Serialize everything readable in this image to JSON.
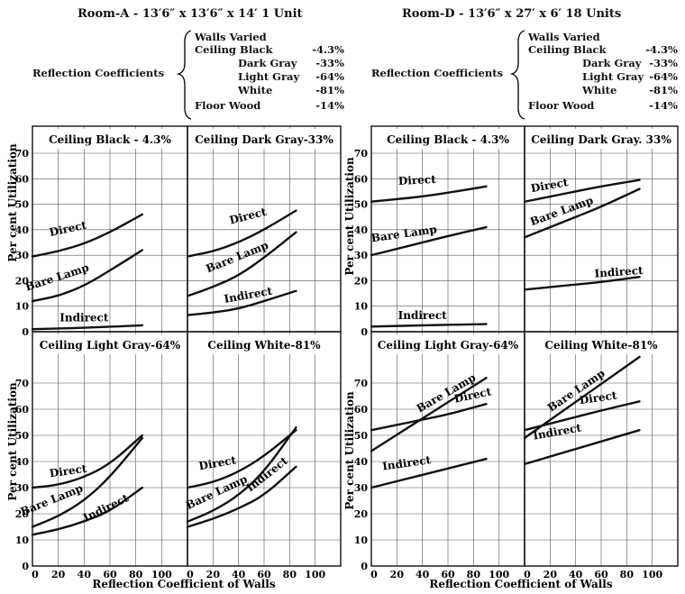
{
  "rooms": [
    {
      "title": "Room-A - 13′6″ x 13′6″ x 14′  1 Unit",
      "reflection_label": "Reflection Coefficients",
      "walls_line": "Walls Varied",
      "coefficients": [
        {
          "label": "Ceiling Black",
          "value": "-4.3%"
        },
        {
          "label": "Dark Gray",
          "value": "-33%"
        },
        {
          "label": "Light Gray",
          "value": "-64%"
        },
        {
          "label": "White",
          "value": "-81%"
        },
        {
          "label": "Floor Wood",
          "value": "-14%"
        }
      ],
      "ylabel": "Per cent Utilization",
      "xlabel": "Reflection Coefficient of Walls"
    },
    {
      "title": "Room-D - 13′6″ x 27′ x 6′  18 Units",
      "reflection_label": "Reflection Coefficients",
      "walls_line": "Walls Varied",
      "coefficients": [
        {
          "label": "Ceiling Black",
          "value": "-4.3%"
        },
        {
          "label": "Dark Gray",
          "value": "-33%"
        },
        {
          "label": "Light Gray",
          "value": "-64%"
        },
        {
          "label": "White",
          "value": "-81%"
        },
        {
          "label": "Floor Wood",
          "value": "-14%"
        }
      ],
      "ylabel": "Per cent Utilization",
      "xlabel": "Reflection Coefficient of Walls"
    }
  ],
  "chart_data": [
    {
      "type": "line",
      "room": "Room-A",
      "title": "Ceiling Black - 4.3%",
      "xlim": [
        0,
        120
      ],
      "ylim": [
        0,
        70
      ],
      "grid": true,
      "xticks": [
        0,
        20,
        40,
        60,
        80,
        100
      ],
      "yticks": [
        0,
        10,
        20,
        30,
        40,
        50,
        60,
        70
      ],
      "series": [
        {
          "name": "Direct",
          "x": [
            0,
            20,
            40,
            60,
            85
          ],
          "y": [
            29.5,
            31.5,
            34.5,
            39,
            46
          ]
        },
        {
          "name": "Bare Lamp",
          "x": [
            0,
            20,
            40,
            60,
            85
          ],
          "y": [
            12,
            14,
            18,
            24,
            32
          ]
        },
        {
          "name": "Indirect",
          "x": [
            0,
            40,
            85
          ],
          "y": [
            1,
            1.5,
            2.5
          ]
        }
      ]
    },
    {
      "type": "line",
      "room": "Room-A",
      "title": "Ceiling Dark Gray-33%",
      "xlim": [
        0,
        120
      ],
      "ylim": [
        0,
        70
      ],
      "grid": true,
      "xticks": [
        0,
        20,
        40,
        60,
        80,
        100
      ],
      "yticks": [
        0,
        10,
        20,
        30,
        40,
        50,
        60,
        70
      ],
      "series": [
        {
          "name": "Direct",
          "x": [
            0,
            20,
            40,
            60,
            85
          ],
          "y": [
            29.5,
            31.5,
            35,
            40,
            47.5
          ]
        },
        {
          "name": "Bare Lamp",
          "x": [
            0,
            20,
            40,
            60,
            85
          ],
          "y": [
            14,
            17.5,
            22,
            29,
            39
          ]
        },
        {
          "name": "Indirect",
          "x": [
            0,
            20,
            40,
            60,
            85
          ],
          "y": [
            6.5,
            7.5,
            9,
            12,
            16
          ]
        }
      ]
    },
    {
      "type": "line",
      "room": "Room-A",
      "title": "Ceiling Light Gray-64%",
      "xlim": [
        0,
        120
      ],
      "ylim": [
        0,
        80
      ],
      "grid": true,
      "xticks": [
        0,
        20,
        40,
        60,
        80,
        100
      ],
      "yticks": [
        0,
        10,
        20,
        30,
        40,
        50,
        60,
        70
      ],
      "series": [
        {
          "name": "Direct",
          "x": [
            0,
            20,
            40,
            60,
            85
          ],
          "y": [
            30,
            31,
            34,
            39,
            50
          ]
        },
        {
          "name": "Bare Lamp",
          "x": [
            0,
            20,
            40,
            60,
            85
          ],
          "y": [
            15,
            19,
            25,
            34,
            49
          ]
        },
        {
          "name": "Indirect",
          "x": [
            0,
            20,
            40,
            60,
            85
          ],
          "y": [
            12,
            14,
            17,
            21,
            30
          ]
        }
      ]
    },
    {
      "type": "line",
      "room": "Room-A",
      "title": "Ceiling White-81%",
      "xlim": [
        0,
        120
      ],
      "ylim": [
        0,
        80
      ],
      "grid": true,
      "xticks": [
        0,
        20,
        40,
        60,
        80,
        100
      ],
      "yticks": [
        0,
        10,
        20,
        30,
        40,
        50,
        60,
        70
      ],
      "series": [
        {
          "name": "Direct",
          "x": [
            0,
            20,
            40,
            60,
            85
          ],
          "y": [
            30,
            32,
            36,
            42,
            52
          ]
        },
        {
          "name": "Bare Lamp",
          "x": [
            0,
            20,
            40,
            60,
            85
          ],
          "y": [
            17,
            21,
            27,
            36,
            53
          ]
        },
        {
          "name": "Indirect",
          "x": [
            0,
            20,
            40,
            60,
            85
          ],
          "y": [
            15,
            18,
            22,
            27,
            38
          ]
        }
      ]
    },
    {
      "type": "line",
      "room": "Room-D",
      "title": "Ceiling Black - 4.3%",
      "xlim": [
        0,
        120
      ],
      "ylim": [
        0,
        75
      ],
      "grid": true,
      "xticks": [
        0,
        20,
        40,
        60,
        80,
        100
      ],
      "yticks": [
        0,
        10,
        20,
        30,
        40,
        50,
        60,
        70
      ],
      "series": [
        {
          "name": "Direct",
          "x": [
            0,
            20,
            40,
            60,
            90
          ],
          "y": [
            51,
            52,
            53,
            54.5,
            57
          ]
        },
        {
          "name": "Bare Lamp",
          "x": [
            0,
            20,
            40,
            60,
            90
          ],
          "y": [
            30,
            32.5,
            35,
            37.5,
            41
          ]
        },
        {
          "name": "Indirect",
          "x": [
            0,
            40,
            90
          ],
          "y": [
            2,
            2.5,
            3
          ]
        }
      ]
    },
    {
      "type": "line",
      "room": "Room-D",
      "title": "Ceiling Dark Gray. 33%",
      "xlim": [
        0,
        120
      ],
      "ylim": [
        0,
        75
      ],
      "grid": true,
      "xticks": [
        0,
        20,
        40,
        60,
        80,
        100
      ],
      "yticks": [
        0,
        10,
        20,
        30,
        40,
        50,
        60,
        70
      ],
      "series": [
        {
          "name": "Direct",
          "x": [
            0,
            20,
            40,
            60,
            90
          ],
          "y": [
            51,
            53,
            55,
            57,
            59.5
          ]
        },
        {
          "name": "Bare Lamp",
          "x": [
            0,
            20,
            40,
            60,
            90
          ],
          "y": [
            37,
            41,
            45,
            49,
            56
          ]
        },
        {
          "name": "Indirect",
          "x": [
            0,
            20,
            40,
            60,
            90
          ],
          "y": [
            16.5,
            17.5,
            18.5,
            19.5,
            21.5
          ]
        }
      ]
    },
    {
      "type": "line",
      "room": "Room-D",
      "title": "Ceiling Light Gray-64%",
      "xlim": [
        0,
        120
      ],
      "ylim": [
        0,
        80
      ],
      "grid": true,
      "xticks": [
        0,
        20,
        40,
        60,
        80,
        100
      ],
      "yticks": [
        0,
        10,
        20,
        30,
        40,
        50,
        60,
        70
      ],
      "series": [
        {
          "name": "Bare Lamp",
          "x": [
            0,
            90
          ],
          "y": [
            44,
            72
          ]
        },
        {
          "name": "Direct",
          "x": [
            0,
            20,
            40,
            60,
            90
          ],
          "y": [
            52,
            54,
            56,
            58,
            62
          ]
        },
        {
          "name": "Indirect",
          "x": [
            0,
            90
          ],
          "y": [
            30,
            41
          ]
        }
      ]
    },
    {
      "type": "line",
      "room": "Room-D",
      "title": "Ceiling White-81%",
      "xlim": [
        0,
        120
      ],
      "ylim": [
        0,
        80
      ],
      "grid": true,
      "xticks": [
        0,
        20,
        40,
        60,
        80,
        100
      ],
      "yticks": [
        0,
        10,
        20,
        30,
        40,
        50,
        60,
        70
      ],
      "series": [
        {
          "name": "Bare Lamp",
          "x": [
            0,
            90
          ],
          "y": [
            49,
            80
          ]
        },
        {
          "name": "Direct",
          "x": [
            0,
            20,
            40,
            60,
            90
          ],
          "y": [
            52,
            54.5,
            57,
            59.5,
            63
          ]
        },
        {
          "name": "Indirect",
          "x": [
            0,
            90
          ],
          "y": [
            39,
            52
          ]
        }
      ]
    }
  ]
}
